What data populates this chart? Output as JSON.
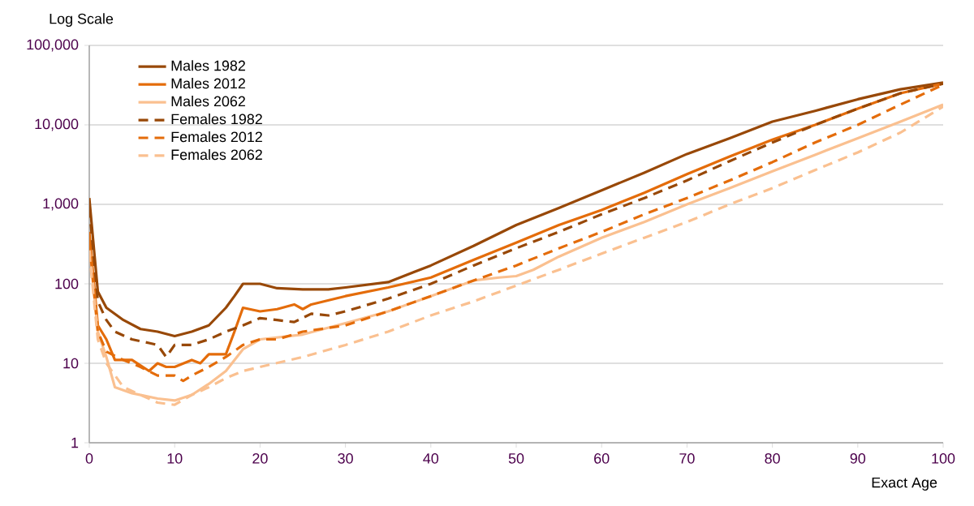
{
  "chart_data": {
    "type": "line",
    "ylabel": "Log Scale",
    "xlabel": "Exact Age",
    "log": true,
    "grid": "y",
    "legend": "top left",
    "marker": "none",
    "xlim": [
      0,
      100
    ],
    "xticks": [
      0,
      10,
      20,
      30,
      40,
      50,
      60,
      70,
      80,
      90,
      100
    ],
    "ylim": [
      1,
      100000
    ],
    "yticks": [
      {
        "value": 1,
        "label": "1"
      },
      {
        "value": 10,
        "label": "10"
      },
      {
        "value": 100,
        "label": "100"
      },
      {
        "value": 1000,
        "label": "1,000"
      },
      {
        "value": 10000,
        "label": "10,000"
      },
      {
        "value": 100000,
        "label": "100,000"
      }
    ],
    "series": [
      {
        "name": "Males 1982",
        "color": "#984807",
        "line_style": "solid",
        "x": [
          0,
          1,
          2,
          4,
          6,
          8,
          10,
          12,
          14,
          16,
          17,
          18,
          20,
          22,
          25,
          28,
          30,
          35,
          40,
          45,
          50,
          55,
          60,
          65,
          70,
          75,
          80,
          85,
          90,
          95,
          100
        ],
        "values": [
          1200,
          80,
          50,
          35,
          27,
          25,
          22,
          25,
          30,
          50,
          70,
          100,
          100,
          88,
          85,
          85,
          90,
          105,
          170,
          300,
          550,
          900,
          1500,
          2500,
          4300,
          6800,
          11000,
          15000,
          21000,
          28000,
          34000
        ]
      },
      {
        "name": "Males 2012",
        "color": "#E46C0A",
        "line_style": "solid",
        "x": [
          0,
          1,
          2,
          3,
          5,
          7,
          8,
          9,
          10,
          12,
          13,
          14,
          16,
          17,
          18,
          20,
          22,
          24,
          25,
          26,
          30,
          35,
          40,
          45,
          50,
          55,
          60,
          65,
          70,
          75,
          80,
          85,
          90,
          95,
          100
        ],
        "values": [
          450,
          30,
          20,
          11,
          11,
          8,
          10,
          9,
          9,
          11,
          10,
          13,
          13,
          25,
          50,
          45,
          48,
          55,
          48,
          55,
          70,
          90,
          120,
          200,
          330,
          550,
          850,
          1400,
          2400,
          4000,
          6500,
          10000,
          16000,
          25000,
          33000
        ]
      },
      {
        "name": "Males 2062",
        "color": "#FAC090",
        "line_style": "solid",
        "x": [
          0,
          1,
          2,
          3,
          5,
          8,
          10,
          12,
          14,
          16,
          18,
          20,
          25,
          30,
          35,
          40,
          45,
          48,
          50,
          52,
          55,
          60,
          65,
          70,
          75,
          80,
          85,
          90,
          95,
          100
        ],
        "values": [
          300,
          25,
          12,
          5,
          4.2,
          3.6,
          3.4,
          4,
          5.5,
          8,
          15,
          20,
          23,
          32,
          45,
          70,
          110,
          120,
          125,
          150,
          220,
          380,
          600,
          1000,
          1600,
          2600,
          4200,
          6800,
          11000,
          18000
        ]
      },
      {
        "name": "Females 1982",
        "color": "#984807",
        "line_style": "dashed",
        "x": [
          0,
          1,
          2,
          3,
          5,
          7,
          8,
          9,
          10,
          12,
          14,
          16,
          18,
          20,
          22,
          24,
          26,
          28,
          30,
          35,
          40,
          45,
          50,
          55,
          60,
          65,
          70,
          75,
          80,
          85,
          90,
          95,
          100
        ],
        "values": [
          900,
          60,
          35,
          25,
          20,
          18,
          17,
          12,
          17,
          17,
          20,
          25,
          30,
          37,
          35,
          33,
          42,
          40,
          45,
          65,
          100,
          170,
          280,
          450,
          750,
          1200,
          2000,
          3500,
          6000,
          10000,
          16000,
          25000,
          33000
        ]
      },
      {
        "name": "Females 2012",
        "color": "#E46C0A",
        "line_style": "dashed",
        "x": [
          0,
          1,
          2,
          4,
          6,
          8,
          10,
          11,
          12,
          14,
          16,
          18,
          20,
          22,
          25,
          30,
          35,
          40,
          45,
          50,
          55,
          60,
          65,
          70,
          75,
          80,
          85,
          90,
          95,
          100
        ],
        "values": [
          350,
          25,
          14,
          11,
          9,
          7,
          7,
          6,
          7,
          9,
          12,
          17,
          20,
          20,
          25,
          30,
          45,
          70,
          110,
          170,
          280,
          450,
          750,
          1200,
          2000,
          3400,
          6000,
          10000,
          18000,
          32000
        ]
      },
      {
        "name": "Females 2062",
        "color": "#FAC090",
        "line_style": "dashed",
        "x": [
          0,
          1,
          2,
          4,
          6,
          8,
          10,
          12,
          14,
          16,
          18,
          20,
          25,
          30,
          35,
          40,
          45,
          50,
          55,
          60,
          65,
          70,
          75,
          80,
          85,
          90,
          95,
          100
        ],
        "values": [
          250,
          20,
          10,
          5,
          4,
          3.2,
          3,
          4,
          5,
          6.5,
          8,
          9,
          12,
          17,
          25,
          40,
          60,
          95,
          150,
          240,
          380,
          600,
          1000,
          1600,
          2700,
          4500,
          8000,
          17000
        ]
      }
    ]
  }
}
